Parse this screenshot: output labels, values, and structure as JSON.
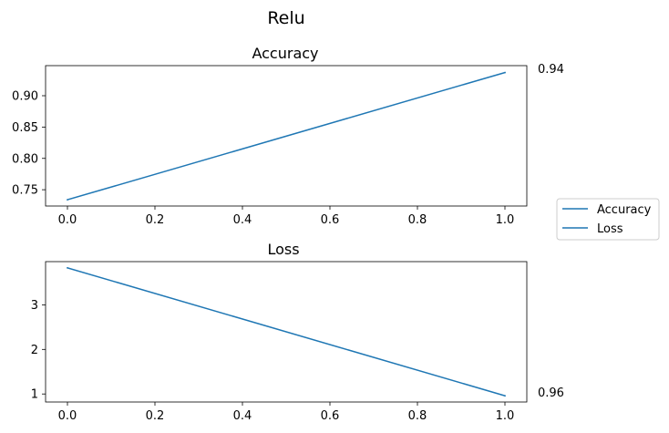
{
  "figure": {
    "suptitle": "Relu"
  },
  "colors": {
    "series": "#1f77b4",
    "legend_border": "#cccccc"
  },
  "legend": {
    "entries": [
      "Accuracy",
      "Loss"
    ],
    "position": "right-center"
  },
  "chart_data": [
    {
      "type": "line",
      "title": "Accuracy",
      "xlabel": "",
      "ylabel": "",
      "x": [
        0.0,
        1.0
      ],
      "series": [
        {
          "name": "Accuracy",
          "values": [
            0.734,
            0.937
          ]
        }
      ],
      "xlim": [
        -0.05,
        1.05
      ],
      "ylim": [
        0.724,
        0.948
      ],
      "xticks": [
        "0.0",
        "0.2",
        "0.4",
        "0.6",
        "0.8",
        "1.0"
      ],
      "yticks": [
        "0.75",
        "0.80",
        "0.85",
        "0.90"
      ],
      "annotation": "0.94",
      "grid": false
    },
    {
      "type": "line",
      "title": "Loss",
      "xlabel": "",
      "ylabel": "",
      "x": [
        0.0,
        1.0
      ],
      "series": [
        {
          "name": "Loss",
          "values": [
            3.83,
            0.96
          ]
        }
      ],
      "xlim": [
        -0.05,
        1.05
      ],
      "ylim": [
        0.82,
        3.97
      ],
      "xticks": [
        "0.0",
        "0.2",
        "0.4",
        "0.6",
        "0.8",
        "1.0"
      ],
      "yticks": [
        "1",
        "2",
        "3"
      ],
      "annotation": "0.96",
      "grid": false
    }
  ]
}
